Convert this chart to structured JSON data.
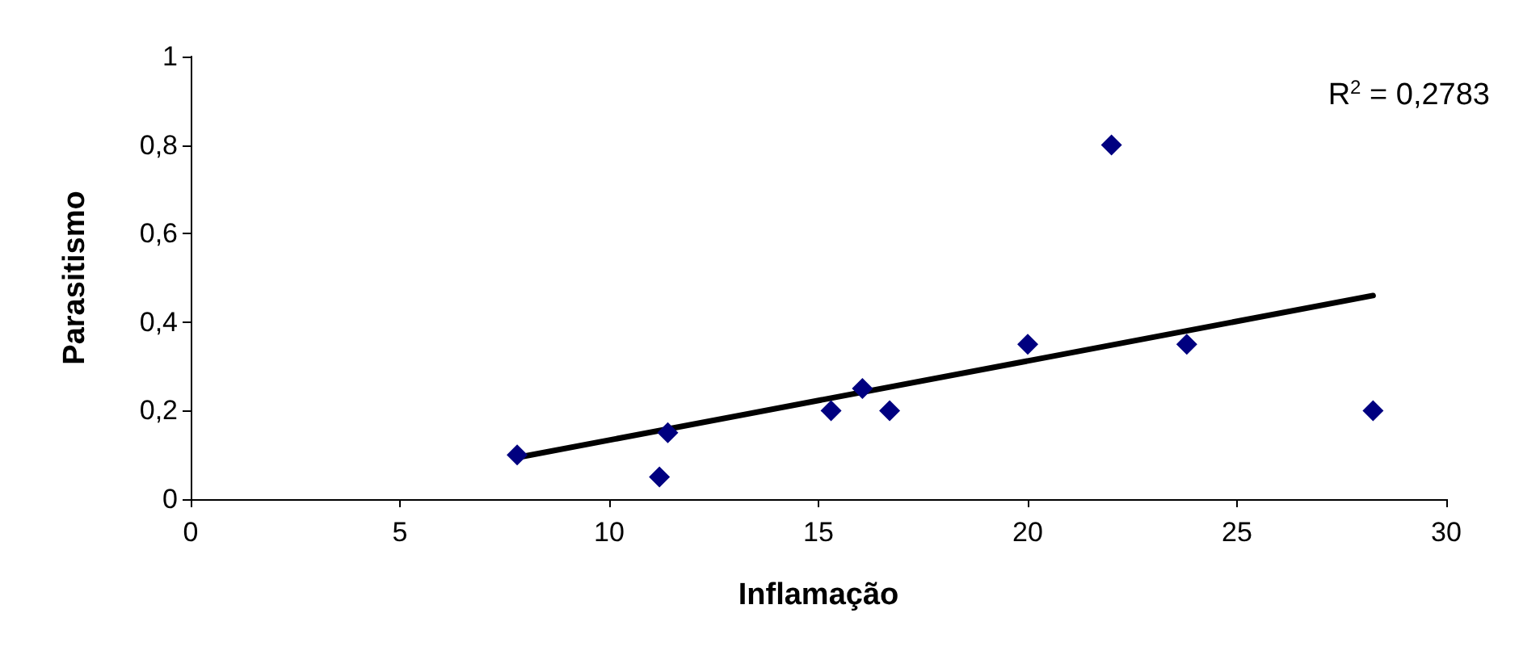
{
  "chart_data": {
    "type": "scatter",
    "xlabel": "Inflamação",
    "ylabel": "Parasitismo",
    "annotations": [
      "R$^{2}$ = 0,2783"
    ],
    "xlim": [
      0,
      30
    ],
    "xticks": [
      0,
      5,
      10,
      15,
      20,
      25,
      30
    ],
    "ylim": [
      0,
      1
    ],
    "yticks": [
      0,
      {
        "value": 0.2,
        "label": "0,2"
      },
      {
        "value": 0.4,
        "label": "0,4"
      },
      {
        "value": 0.6,
        "label": "0,6"
      },
      {
        "value": 0.8,
        "label": "0,8"
      },
      1
    ],
    "grid": false,
    "series": [
      {
        "color": "#000080",
        "marker": "diamond",
        "x": [
          7.8,
          11.2,
          11.4,
          15.3,
          16.05,
          16.7,
          20.0,
          22.0,
          23.8,
          28.25
        ],
        "values": [
          0.1,
          0.05,
          0.15,
          0.2,
          0.25,
          0.2,
          0.35,
          0.8,
          0.35,
          0.2
        ]
      },
      {
        "type": "line",
        "color": "#000000",
        "marker": "none",
        "line_style": "solid",
        "x": [
          7.8,
          28.25
        ],
        "values": [
          0.094,
          0.46
        ]
      }
    ]
  }
}
